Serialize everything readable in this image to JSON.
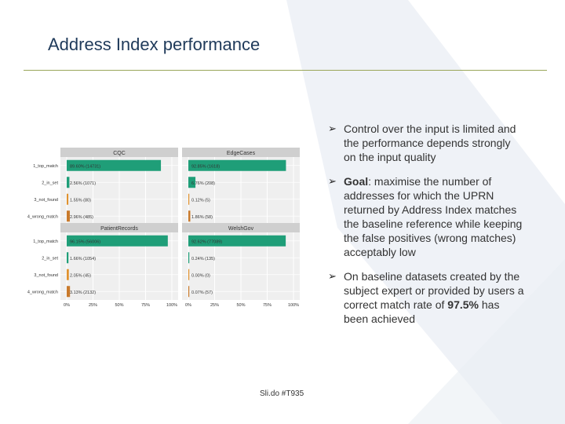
{
  "slide": {
    "title": "Address Index performance",
    "footer": "Sli.do #T935"
  },
  "bullets": [
    {
      "segments": [
        {
          "text": "Control over the input is limited and the performance depends strongly on the input quality",
          "bold": false
        }
      ]
    },
    {
      "segments": [
        {
          "text": "Goal",
          "bold": true
        },
        {
          "text": ": maximise the number of addresses for which the UPRN returned by Address Index matches the baseline reference while keeping the false positives (wrong matches) acceptably low",
          "bold": false
        }
      ]
    },
    {
      "segments": [
        {
          "text": "On baseline datasets created by the subject expert or provided by users a correct match rate of ",
          "bold": false
        },
        {
          "text": "97.5%",
          "bold": true
        },
        {
          "text": " has been achieved",
          "bold": false
        }
      ]
    }
  ],
  "colors": {
    "title": "#1f3a5a",
    "rule": "#9aa65a",
    "top_match": "#1f9e78",
    "in_set": "#1f9e78",
    "not_found": "#e0922f",
    "wrong_match": "#c97a2c",
    "panel_header": "#cfcfcf",
    "panel_bg": "#efefef"
  },
  "chart_data": {
    "type": "bar",
    "orientation": "horizontal",
    "categories": [
      "1_top_match",
      "2_in_set",
      "3_not_found",
      "4_wrong_match"
    ],
    "xlim": [
      0,
      100
    ],
    "x_ticks": [
      "0%",
      "25%",
      "50%",
      "75%",
      "100%"
    ],
    "grid": true,
    "panels": [
      {
        "name": "CQC",
        "values": [
          89.6,
          2.56,
          1.55,
          2.96
        ],
        "labels": [
          "89.60% (14731)",
          "2.56% (1071)",
          "1.55% (80)",
          "2.96% (485)"
        ]
      },
      {
        "name": "EdgeCases",
        "values": [
          92.85,
          6.76,
          0.12,
          1.86
        ],
        "labels": [
          "92.85% (1618)",
          "6.76% (208)",
          "0.12% (5)",
          "1.86% (58)"
        ]
      },
      {
        "name": "PatientRecords",
        "values": [
          96.15,
          1.66,
          2.05,
          3.13
        ],
        "labels": [
          "96.15% (56006)",
          "1.66% (1054)",
          "2.05% (45)",
          "3.13% (2132)"
        ]
      },
      {
        "name": "WelshGov",
        "values": [
          92.62,
          0.24,
          0.0,
          0.07
        ],
        "labels": [
          "92.62% (77089)",
          "0.24% (135)",
          "0.00% (0)",
          "0.07% (57)"
        ]
      }
    ]
  }
}
